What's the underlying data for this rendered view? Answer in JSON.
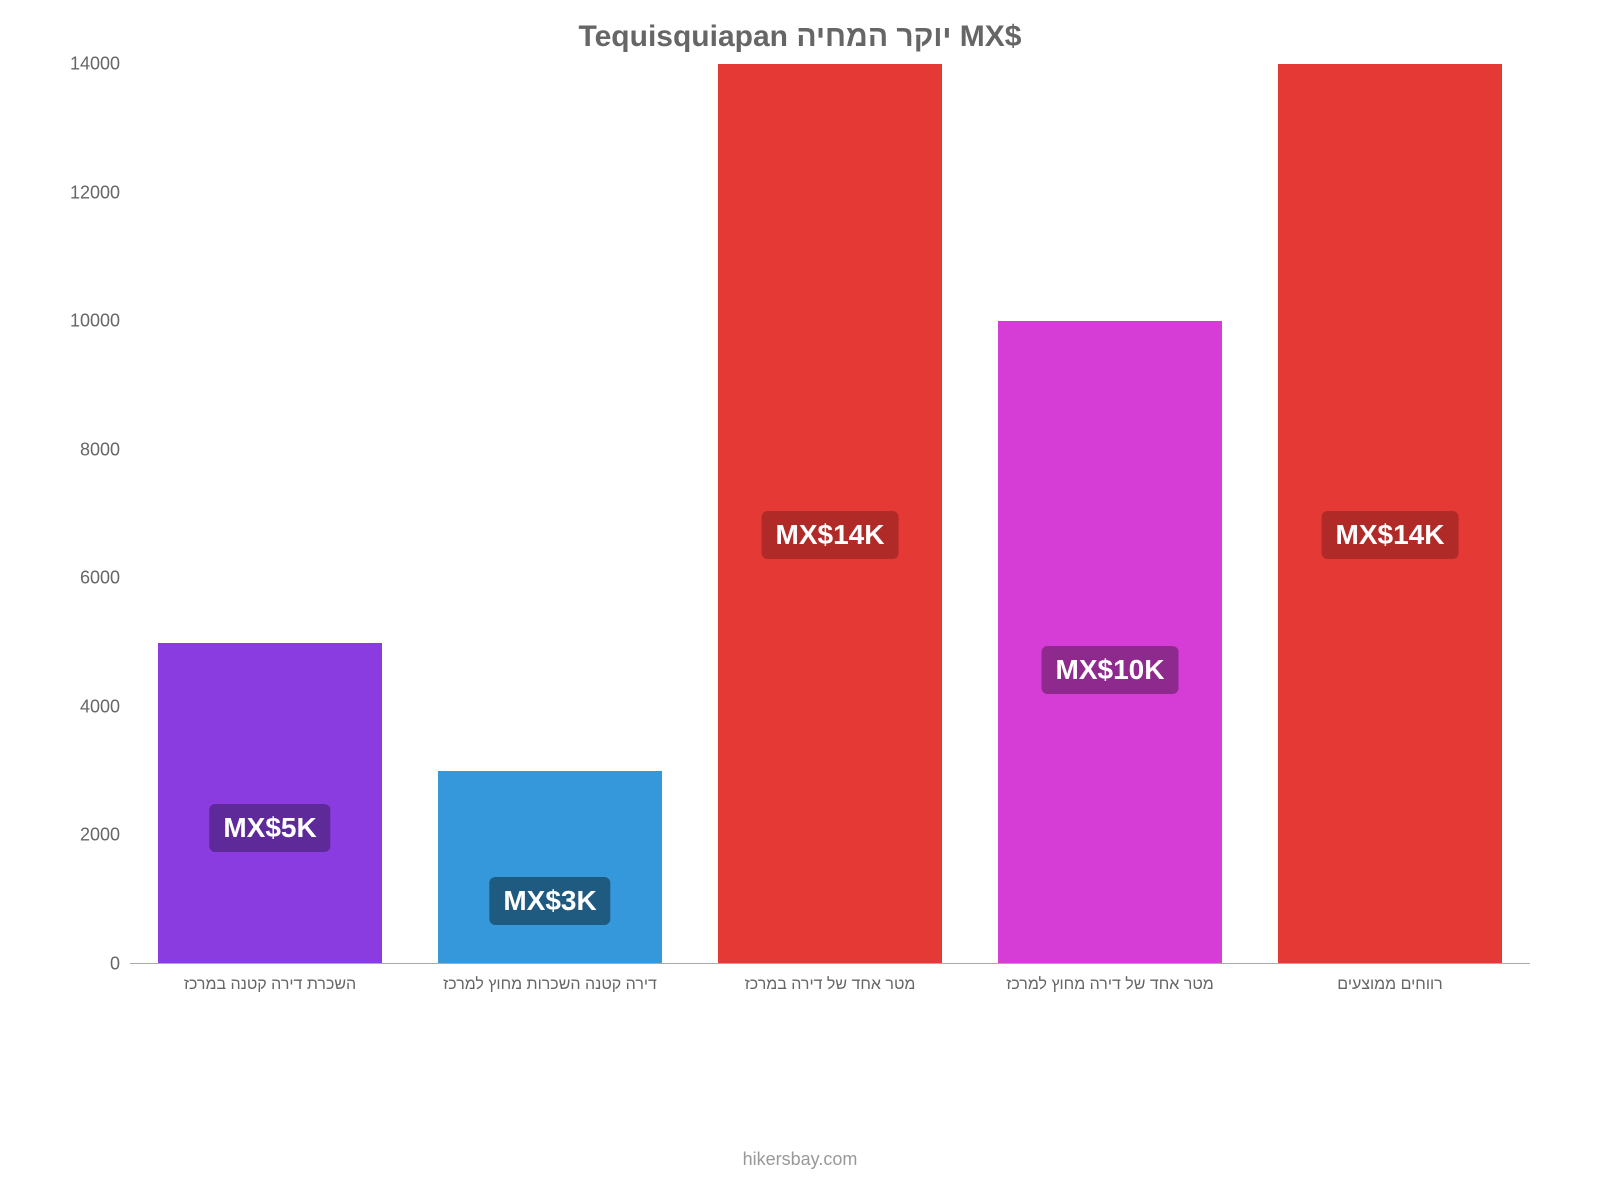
{
  "chart": {
    "type": "bar",
    "title": "Tequisquiapan יוקר המחיה MX$",
    "title_color": "#666666",
    "title_fontsize": 30,
    "background_color": "#ffffff",
    "y_axis": {
      "min": 0,
      "max": 14000,
      "ticks": [
        0,
        2000,
        4000,
        6000,
        8000,
        10000,
        12000,
        14000
      ],
      "tick_color": "#666666",
      "tick_fontsize": 18
    },
    "x_axis": {
      "label_color": "#666666",
      "label_fontsize": 16
    },
    "baseline_color": "#aaaaaa",
    "bar_width_pct": 80,
    "bars": [
      {
        "category": "השכרת דירה קטנה במרכז",
        "value": 5000,
        "color": "#8a3ce0",
        "label": "MX$5K",
        "label_bg": "#5e2a99",
        "label_y_pct": 35
      },
      {
        "category": "דירה קטנה השכרות מחוץ למרכז",
        "value": 3000,
        "color": "#3498db",
        "label": "MX$3K",
        "label_bg": "#1f5a80",
        "label_y_pct": 20
      },
      {
        "category": "מטר אחד של דירה במרכז",
        "value": 14000,
        "color": "#e53935",
        "label": "MX$14K",
        "label_bg": "#b02a27",
        "label_y_pct": 45
      },
      {
        "category": "מטר אחד של דירה מחוץ למרכז",
        "value": 10000,
        "color": "#d63cd6",
        "label": "MX$10K",
        "label_bg": "#8e2a8e",
        "label_y_pct": 42
      },
      {
        "category": "רווחים ממוצעים",
        "value": 14000,
        "color": "#e53935",
        "label": "MX$14K",
        "label_bg": "#b02a27",
        "label_y_pct": 45
      }
    ],
    "footer": "hikersbay.com",
    "footer_color": "#999999"
  }
}
